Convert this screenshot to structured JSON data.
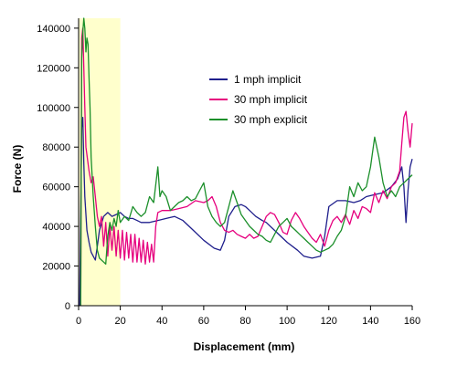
{
  "chart_data": {
    "type": "line",
    "xlabel": "Displacement (mm)",
    "ylabel": "Force (N)",
    "xlim": [
      0,
      160
    ],
    "ylim": [
      0,
      145000
    ],
    "x_ticks": [
      0,
      20,
      40,
      60,
      80,
      100,
      120,
      140,
      160
    ],
    "y_ticks": [
      0,
      20000,
      40000,
      60000,
      80000,
      100000,
      120000,
      140000
    ],
    "grid": false,
    "legend_position": "right",
    "highlight_region": {
      "x": [
        0,
        20
      ],
      "color": "#ffffcc"
    },
    "series": [
      {
        "name": "1 mph implicit",
        "color": "#1f1f8c",
        "points": [
          [
            0.5,
            0
          ],
          [
            1.5,
            90000
          ],
          [
            2,
            95000
          ],
          [
            2.5,
            72000
          ],
          [
            3,
            55000
          ],
          [
            4,
            38000
          ],
          [
            5,
            32000
          ],
          [
            6,
            27000
          ],
          [
            7,
            25000
          ],
          [
            8,
            23000
          ],
          [
            9,
            30000
          ],
          [
            10,
            38000
          ],
          [
            12,
            45000
          ],
          [
            14,
            47000
          ],
          [
            16,
            45000
          ],
          [
            18,
            46000
          ],
          [
            20,
            47000
          ],
          [
            22,
            45000
          ],
          [
            24,
            44000
          ],
          [
            26,
            44000
          ],
          [
            28,
            43000
          ],
          [
            30,
            42000
          ],
          [
            34,
            42000
          ],
          [
            38,
            43000
          ],
          [
            42,
            44000
          ],
          [
            46,
            45000
          ],
          [
            50,
            43000
          ],
          [
            55,
            38000
          ],
          [
            60,
            33000
          ],
          [
            65,
            29000
          ],
          [
            68,
            28000
          ],
          [
            70,
            33000
          ],
          [
            72,
            45000
          ],
          [
            75,
            50000
          ],
          [
            78,
            51000
          ],
          [
            80,
            50000
          ],
          [
            82,
            48000
          ],
          [
            85,
            45000
          ],
          [
            88,
            43000
          ],
          [
            90,
            42000
          ],
          [
            95,
            37000
          ],
          [
            100,
            32000
          ],
          [
            105,
            28000
          ],
          [
            108,
            25000
          ],
          [
            112,
            24000
          ],
          [
            116,
            25000
          ],
          [
            118,
            35000
          ],
          [
            120,
            50000
          ],
          [
            124,
            53000
          ],
          [
            128,
            53000
          ],
          [
            132,
            52000
          ],
          [
            135,
            53000
          ],
          [
            138,
            55000
          ],
          [
            142,
            56000
          ],
          [
            146,
            57000
          ],
          [
            150,
            60000
          ],
          [
            153,
            64000
          ],
          [
            155,
            70000
          ],
          [
            156,
            60000
          ],
          [
            157,
            42000
          ],
          [
            158,
            58000
          ],
          [
            159,
            70000
          ],
          [
            160,
            74000
          ]
        ]
      },
      {
        "name": "30 mph implicit",
        "color": "#e6007e",
        "points": [
          [
            1,
            0
          ],
          [
            1.5,
            135000
          ],
          [
            2,
            140000
          ],
          [
            2.5,
            120000
          ],
          [
            3,
            100000
          ],
          [
            3.5,
            80000
          ],
          [
            5,
            68000
          ],
          [
            6,
            62000
          ],
          [
            7,
            65000
          ],
          [
            8,
            55000
          ],
          [
            9,
            45000
          ],
          [
            10,
            40000
          ],
          [
            11,
            45000
          ],
          [
            12,
            30000
          ],
          [
            13,
            42000
          ],
          [
            14,
            25000
          ],
          [
            15,
            40000
          ],
          [
            16,
            28000
          ],
          [
            17,
            40000
          ],
          [
            18,
            25000
          ],
          [
            19,
            38000
          ],
          [
            20,
            24000
          ],
          [
            21,
            38000
          ],
          [
            22,
            23000
          ],
          [
            23,
            37000
          ],
          [
            24,
            24000
          ],
          [
            25,
            36000
          ],
          [
            26,
            22000
          ],
          [
            27,
            36000
          ],
          [
            28,
            22000
          ],
          [
            29,
            34000
          ],
          [
            30,
            22000
          ],
          [
            31,
            33000
          ],
          [
            32,
            21000
          ],
          [
            33,
            32000
          ],
          [
            34,
            22000
          ],
          [
            35,
            31000
          ],
          [
            36,
            22000
          ],
          [
            37,
            40000
          ],
          [
            38,
            47000
          ],
          [
            40,
            48000
          ],
          [
            44,
            48000
          ],
          [
            48,
            49000
          ],
          [
            52,
            50000
          ],
          [
            56,
            53000
          ],
          [
            60,
            52000
          ],
          [
            62,
            53000
          ],
          [
            64,
            55000
          ],
          [
            66,
            50000
          ],
          [
            68,
            42000
          ],
          [
            70,
            38000
          ],
          [
            72,
            37000
          ],
          [
            74,
            38000
          ],
          [
            76,
            36000
          ],
          [
            78,
            35000
          ],
          [
            80,
            34000
          ],
          [
            82,
            36000
          ],
          [
            84,
            34000
          ],
          [
            86,
            35000
          ],
          [
            88,
            40000
          ],
          [
            90,
            45000
          ],
          [
            92,
            47000
          ],
          [
            94,
            46000
          ],
          [
            96,
            42000
          ],
          [
            98,
            37000
          ],
          [
            100,
            36000
          ],
          [
            102,
            43000
          ],
          [
            104,
            47000
          ],
          [
            106,
            44000
          ],
          [
            108,
            40000
          ],
          [
            110,
            37000
          ],
          [
            112,
            34000
          ],
          [
            114,
            32000
          ],
          [
            116,
            36000
          ],
          [
            118,
            30000
          ],
          [
            120,
            38000
          ],
          [
            122,
            43000
          ],
          [
            124,
            45000
          ],
          [
            126,
            42000
          ],
          [
            128,
            46000
          ],
          [
            130,
            41000
          ],
          [
            132,
            48000
          ],
          [
            134,
            44000
          ],
          [
            136,
            50000
          ],
          [
            138,
            49000
          ],
          [
            140,
            47000
          ],
          [
            142,
            57000
          ],
          [
            144,
            52000
          ],
          [
            146,
            58000
          ],
          [
            148,
            54000
          ],
          [
            150,
            60000
          ],
          [
            152,
            62000
          ],
          [
            154,
            68000
          ],
          [
            155,
            82000
          ],
          [
            156,
            95000
          ],
          [
            157,
            98000
          ],
          [
            158,
            88000
          ],
          [
            159,
            80000
          ],
          [
            160,
            92000
          ]
        ]
      },
      {
        "name": "30 mph explicit",
        "color": "#1b8f2a",
        "points": [
          [
            1,
            0
          ],
          [
            1.5,
            125000
          ],
          [
            2,
            138000
          ],
          [
            2.5,
            145000
          ],
          [
            3,
            140000
          ],
          [
            3.5,
            128000
          ],
          [
            4,
            135000
          ],
          [
            4.5,
            132000
          ],
          [
            5,
            115000
          ],
          [
            5.5,
            100000
          ],
          [
            6,
            75000
          ],
          [
            7,
            55000
          ],
          [
            8,
            40000
          ],
          [
            9,
            28000
          ],
          [
            10,
            24000
          ],
          [
            12,
            22000
          ],
          [
            13,
            21000
          ],
          [
            14,
            35000
          ],
          [
            15,
            42000
          ],
          [
            16,
            38000
          ],
          [
            17,
            44000
          ],
          [
            18,
            40000
          ],
          [
            19,
            48000
          ],
          [
            20,
            42000
          ],
          [
            22,
            45000
          ],
          [
            24,
            43000
          ],
          [
            26,
            50000
          ],
          [
            28,
            47000
          ],
          [
            30,
            45000
          ],
          [
            32,
            47000
          ],
          [
            34,
            55000
          ],
          [
            36,
            52000
          ],
          [
            38,
            70000
          ],
          [
            39,
            55000
          ],
          [
            40,
            58000
          ],
          [
            42,
            55000
          ],
          [
            44,
            48000
          ],
          [
            46,
            50000
          ],
          [
            48,
            52000
          ],
          [
            50,
            53000
          ],
          [
            52,
            55000
          ],
          [
            54,
            53000
          ],
          [
            56,
            54000
          ],
          [
            58,
            58000
          ],
          [
            60,
            62000
          ],
          [
            62,
            50000
          ],
          [
            64,
            45000
          ],
          [
            66,
            42000
          ],
          [
            68,
            40000
          ],
          [
            70,
            42000
          ],
          [
            72,
            50000
          ],
          [
            74,
            58000
          ],
          [
            76,
            52000
          ],
          [
            78,
            46000
          ],
          [
            80,
            43000
          ],
          [
            82,
            40000
          ],
          [
            84,
            38000
          ],
          [
            86,
            36000
          ],
          [
            88,
            35000
          ],
          [
            90,
            33000
          ],
          [
            92,
            32000
          ],
          [
            94,
            36000
          ],
          [
            96,
            40000
          ],
          [
            98,
            42000
          ],
          [
            100,
            44000
          ],
          [
            102,
            40000
          ],
          [
            104,
            38000
          ],
          [
            106,
            36000
          ],
          [
            108,
            34000
          ],
          [
            110,
            32000
          ],
          [
            112,
            30000
          ],
          [
            114,
            28000
          ],
          [
            116,
            27000
          ],
          [
            118,
            28000
          ],
          [
            120,
            29000
          ],
          [
            122,
            31000
          ],
          [
            124,
            35000
          ],
          [
            126,
            38000
          ],
          [
            128,
            45000
          ],
          [
            130,
            60000
          ],
          [
            132,
            55000
          ],
          [
            134,
            62000
          ],
          [
            136,
            58000
          ],
          [
            138,
            60000
          ],
          [
            140,
            70000
          ],
          [
            142,
            85000
          ],
          [
            144,
            75000
          ],
          [
            146,
            62000
          ],
          [
            148,
            55000
          ],
          [
            150,
            58000
          ],
          [
            152,
            55000
          ],
          [
            154,
            60000
          ],
          [
            156,
            62000
          ],
          [
            158,
            64000
          ],
          [
            160,
            66000
          ]
        ]
      }
    ]
  }
}
